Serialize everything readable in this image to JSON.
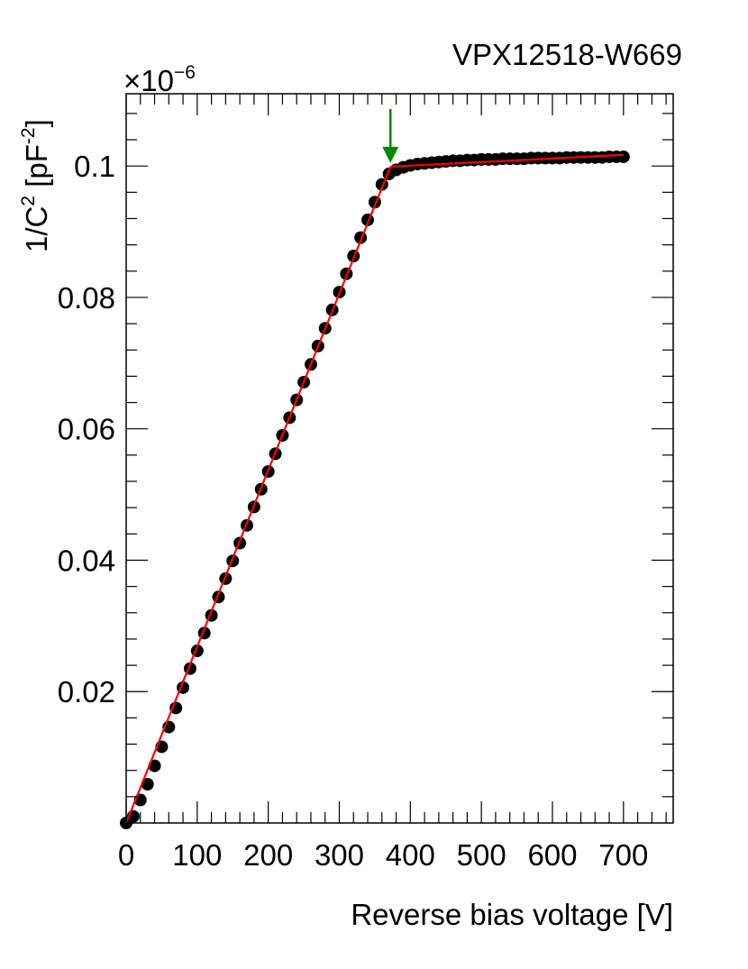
{
  "chart_data": {
    "type": "scatter",
    "title": "VPX12518-W669",
    "xlabel": "Reverse bias voltage [V]",
    "ylabel": {
      "prefix": "1/C",
      "sup1": "2",
      "mid": " [pF",
      "sup2": "-2",
      "suffix": "]"
    },
    "y_multiplier": {
      "base": "×10",
      "exponent": "−6"
    },
    "xlim": [
      0,
      770
    ],
    "ylim": [
      0,
      0.111
    ],
    "x_ticks": [
      0,
      100,
      200,
      300,
      400,
      500,
      600,
      700
    ],
    "x_tick_labels": [
      "0",
      "100",
      "200",
      "300",
      "400",
      "500",
      "600",
      "700"
    ],
    "y_ticks": [
      0.02,
      0.04,
      0.06,
      0.08,
      0.1
    ],
    "y_tick_labels": [
      "0.02",
      "0.04",
      "0.06",
      "0.08",
      "0.1"
    ],
    "series": [
      {
        "kind": "measured points",
        "color": "#000000",
        "x": [
          0,
          10,
          20,
          30,
          40,
          50,
          60,
          70,
          80,
          90,
          100,
          110,
          120,
          130,
          140,
          150,
          160,
          170,
          180,
          190,
          200,
          210,
          220,
          230,
          240,
          250,
          260,
          270,
          280,
          290,
          300,
          310,
          320,
          330,
          340,
          350,
          360,
          370,
          380,
          390,
          400,
          410,
          420,
          430,
          440,
          450,
          460,
          470,
          480,
          490,
          500,
          510,
          520,
          530,
          540,
          550,
          560,
          570,
          580,
          590,
          600,
          610,
          620,
          630,
          640,
          650,
          660,
          670,
          680,
          690,
          700
        ],
        "y": [
          0.0,
          0.001,
          0.0035,
          0.0059,
          0.0087,
          0.0116,
          0.0146,
          0.0175,
          0.0206,
          0.0235,
          0.0262,
          0.0289,
          0.0316,
          0.0344,
          0.0372,
          0.0399,
          0.0426,
          0.0453,
          0.0481,
          0.0508,
          0.0535,
          0.0562,
          0.059,
          0.0617,
          0.0644,
          0.0671,
          0.0698,
          0.0726,
          0.0753,
          0.0781,
          0.0808,
          0.0836,
          0.0863,
          0.0891,
          0.0918,
          0.0945,
          0.0972,
          0.0988,
          0.0994,
          0.0998,
          0.1001,
          0.1003,
          0.1004,
          0.1005,
          0.1006,
          0.1007,
          0.1008,
          0.1008,
          0.1009,
          0.1009,
          0.101,
          0.101,
          0.101,
          0.1011,
          0.1011,
          0.1011,
          0.1011,
          0.1012,
          0.1012,
          0.1012,
          0.1012,
          0.1012,
          0.1013,
          0.1013,
          0.1013,
          0.1013,
          0.1013,
          0.1013,
          0.1014,
          0.1014,
          0.1014
        ]
      },
      {
        "kind": "linear fit (rise)",
        "color": "#ff0000",
        "x": [
          0,
          372
        ],
        "y": [
          0.0,
          0.0999
        ]
      },
      {
        "kind": "linear fit (plateau)",
        "color": "#ff0000",
        "x": [
          372,
          700
        ],
        "y": [
          0.0999,
          0.1017
        ]
      }
    ],
    "annotation": {
      "kind": "arrow",
      "x": 372,
      "y": 0.0999,
      "color": "#008a00"
    },
    "grid": false,
    "legend": "none"
  }
}
